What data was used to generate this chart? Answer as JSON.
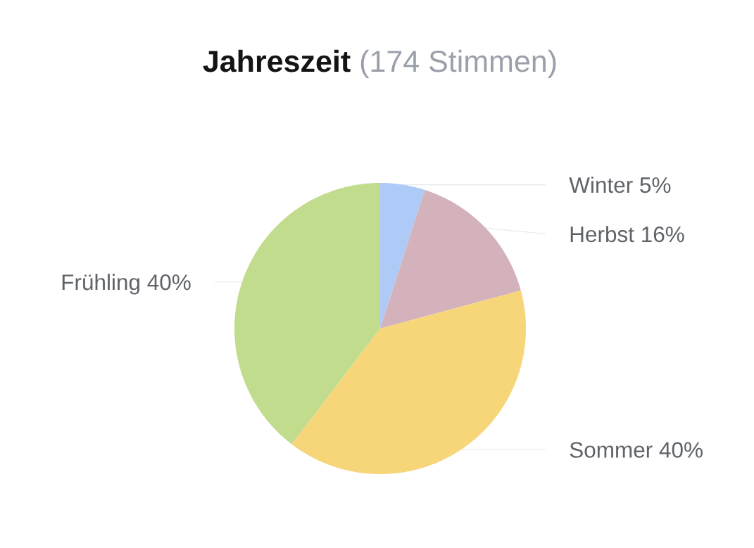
{
  "chart_data": {
    "type": "pie",
    "title": "Jahreszeit",
    "subtitle": "(174 Stimmen)",
    "categories": [
      "Winter",
      "Herbst",
      "Sommer",
      "Frühling"
    ],
    "values": [
      5,
      16,
      40,
      40
    ],
    "value_labels": [
      "5%",
      "16%",
      "40%",
      "40%"
    ],
    "colors": [
      "#aecbf7",
      "#d4b2bc",
      "#f7d67a",
      "#c2dc8e"
    ]
  }
}
